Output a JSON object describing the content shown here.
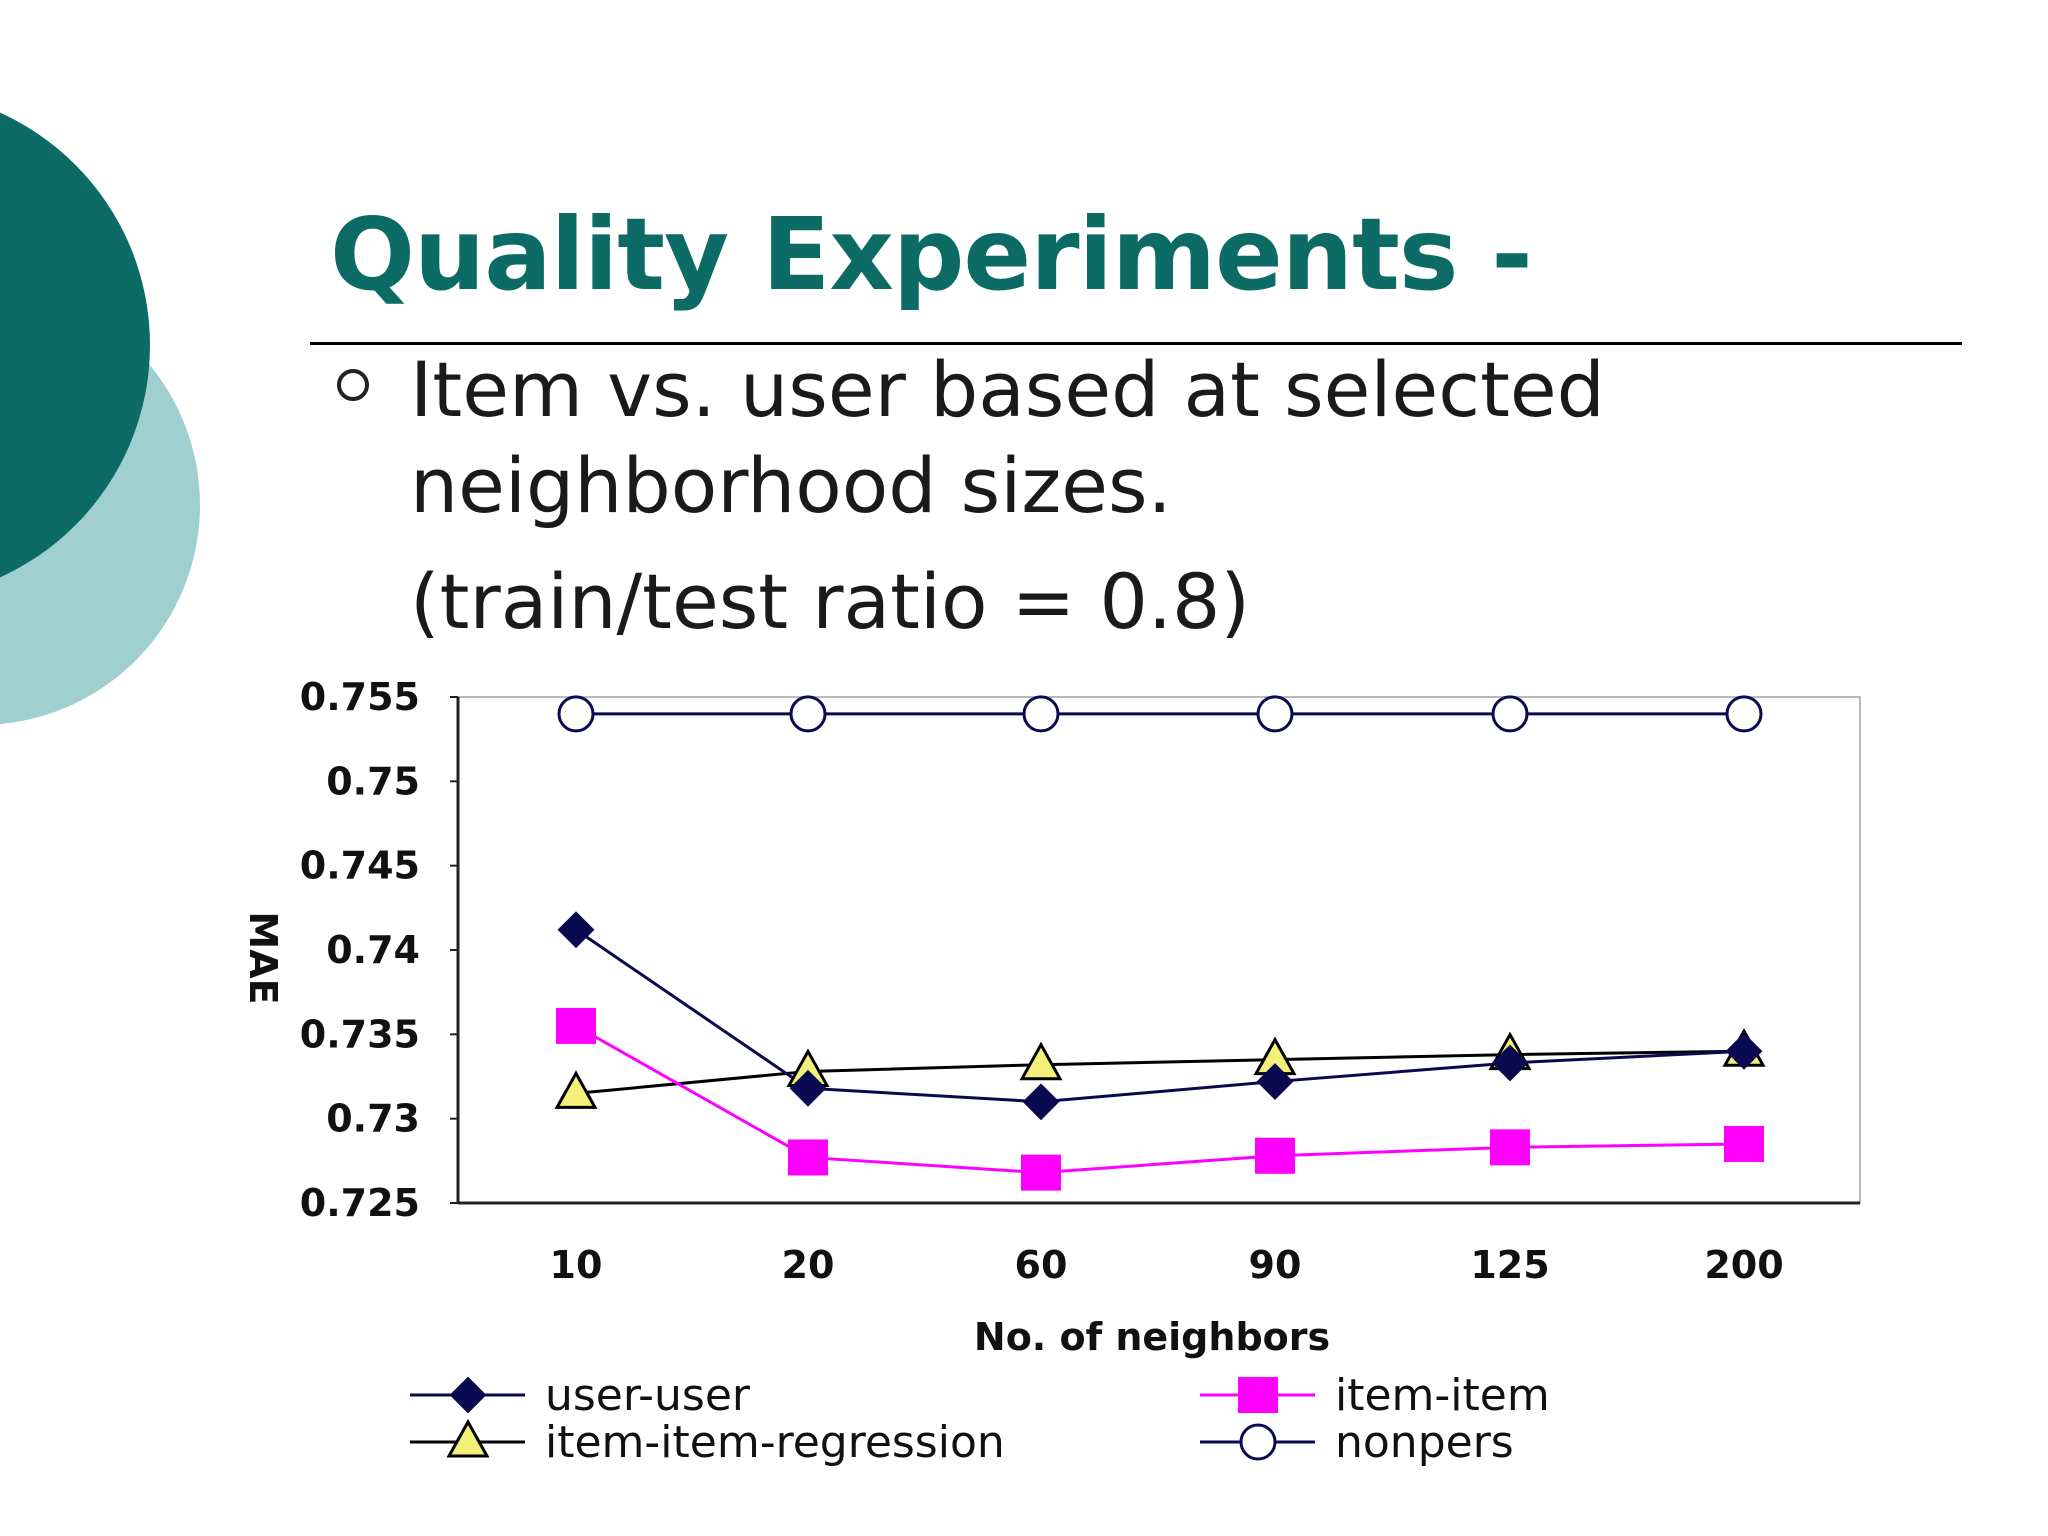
{
  "slide": {
    "title": "Quality Experiments -",
    "bullet_line1": "Item vs. user based at selected",
    "bullet_line2": "neighborhood sizes.",
    "note": "(train/test ratio = 0.8)"
  },
  "colors": {
    "title": "#0d6b66",
    "deco_dark": "#0d6b66",
    "deco_light": "#9fcfcf"
  },
  "chart_data": {
    "type": "line",
    "xlabel": "No. of neighbors",
    "ylabel": "MAE",
    "categories": [
      "10",
      "20",
      "60",
      "90",
      "125",
      "200"
    ],
    "ylim": [
      0.725,
      0.755
    ],
    "yticks": [
      "0.755",
      "0.75",
      "0.745",
      "0.74",
      "0.735",
      "0.73",
      "0.725"
    ],
    "grid": false,
    "legend_position": "bottom",
    "series": [
      {
        "name": "user-user",
        "values": [
          0.7412,
          0.7318,
          0.731,
          0.7322,
          0.7333,
          0.734
        ],
        "color": "#0a0a50",
        "marker": "diamond"
      },
      {
        "name": "item-item",
        "values": [
          0.7355,
          0.7277,
          0.7268,
          0.7278,
          0.7283,
          0.7285
        ],
        "color": "#ff00ff",
        "marker": "square"
      },
      {
        "name": "item-item-regression",
        "values": [
          0.7315,
          0.7328,
          0.7332,
          0.7335,
          0.7338,
          0.734
        ],
        "color": "#000000",
        "marker": "triangle"
      },
      {
        "name": "nonpers",
        "values": [
          0.754,
          0.754,
          0.754,
          0.754,
          0.754,
          0.754
        ],
        "color": "#0a0a50",
        "marker": "circle"
      }
    ]
  }
}
